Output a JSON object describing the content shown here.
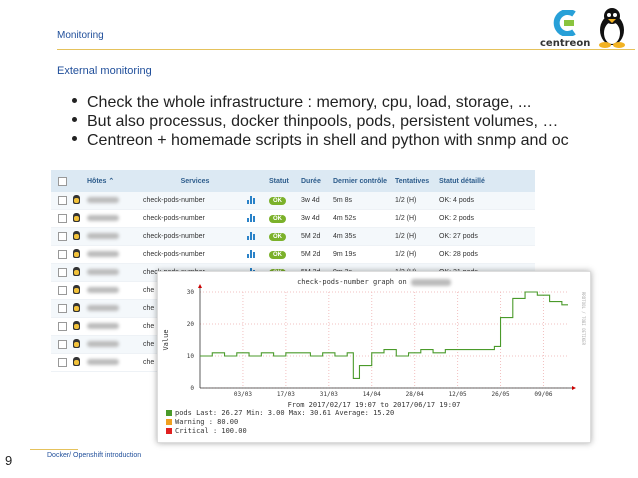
{
  "header": {
    "section": "Monitoring",
    "subtitle": "External monitoring",
    "logo_text": "centreon"
  },
  "bullets": [
    "Check the whole infrastructure : memory, cpu, load, storage, ...",
    "But also processus, docker thinpools, pods, persistent volumes, …",
    "Centreon + homemade scripts in shell and python with snmp and oc"
  ],
  "table": {
    "headers": {
      "hosts": "Hôtes ⌃",
      "services": "Services",
      "statut": "Statut",
      "duree": "Durée",
      "last": "Dernier contrôle",
      "tries": "Tentatives",
      "detail": "Statut détaillé"
    },
    "rows": [
      {
        "service": "check-pods-number",
        "status": "OK",
        "duration": "3w 4d",
        "last": "5m 8s",
        "tries": "1/2 (H)",
        "detail": "OK: 4 pods"
      },
      {
        "service": "check-pods-number",
        "status": "OK",
        "duration": "3w 4d",
        "last": "4m 52s",
        "tries": "1/2 (H)",
        "detail": "OK: 2 pods"
      },
      {
        "service": "check-pods-number",
        "status": "OK",
        "duration": "5M 2d",
        "last": "4m 35s",
        "tries": "1/2 (H)",
        "detail": "OK: 27 pods"
      },
      {
        "service": "check-pods-number",
        "status": "OK",
        "duration": "5M 2d",
        "last": "9m 19s",
        "tries": "1/2 (H)",
        "detail": "OK: 28 pods"
      },
      {
        "service": "check-pods-number",
        "status": "OK",
        "duration": "5M 2d",
        "last": "9m 3s",
        "tries": "1/2 (H)",
        "detail": "OK: 21 pods"
      },
      {
        "service": "che"
      },
      {
        "service": "che"
      },
      {
        "service": "che"
      },
      {
        "service": "che"
      },
      {
        "service": "che"
      }
    ]
  },
  "graph": {
    "title": "check-pods-number graph on",
    "y_label": "Value",
    "y_ticks": [
      "0",
      "10",
      "20",
      "30"
    ],
    "x_ticks": [
      "03/03",
      "17/03",
      "31/03",
      "14/04",
      "28/04",
      "12/05",
      "26/05",
      "09/06"
    ],
    "period": "From 2017/02/17 19:07 to 2017/06/17 19:07",
    "legend": [
      {
        "name": "pods",
        "text": "Last:  26.27   Min:   3.00   Max:  30.61   Average:  15.20",
        "color": "#4a9a2a"
      },
      {
        "name": "Warning",
        "text": ": 80.00",
        "color": "#f0a020"
      },
      {
        "name": "Critical",
        "text": ": 100.00",
        "color": "#e02020"
      }
    ],
    "side_text": "RRDTOOL / TOBI OETIKER"
  },
  "chart_data": {
    "type": "line",
    "x_unit": "date (dd/mm 2017)",
    "x": [
      "17/02",
      "21/02",
      "25/02",
      "01/03",
      "05/03",
      "09/03",
      "13/03",
      "17/03",
      "21/03",
      "25/03",
      "29/03",
      "02/04",
      "06/04",
      "08/04",
      "10/04",
      "14/04",
      "18/04",
      "22/04",
      "26/04",
      "30/04",
      "04/05",
      "08/05",
      "10/05",
      "14/05",
      "18/05",
      "22/05",
      "24/05",
      "26/05",
      "30/05",
      "03/06",
      "07/06",
      "11/06",
      "15/06",
      "17/06"
    ],
    "series": [
      {
        "name": "pods",
        "values": [
          10,
          11,
          10,
          11,
          10,
          11,
          10,
          11,
          11,
          10,
          11,
          10,
          11,
          3,
          7,
          11,
          12,
          10,
          11,
          12,
          11,
          12,
          12,
          12,
          12,
          12,
          13,
          22,
          28,
          30,
          29,
          27,
          26,
          26
        ]
      }
    ],
    "ylim": [
      0,
      30
    ],
    "grid": true
  },
  "footer": {
    "page": "9",
    "text": "Docker/ Openshift introduction"
  }
}
